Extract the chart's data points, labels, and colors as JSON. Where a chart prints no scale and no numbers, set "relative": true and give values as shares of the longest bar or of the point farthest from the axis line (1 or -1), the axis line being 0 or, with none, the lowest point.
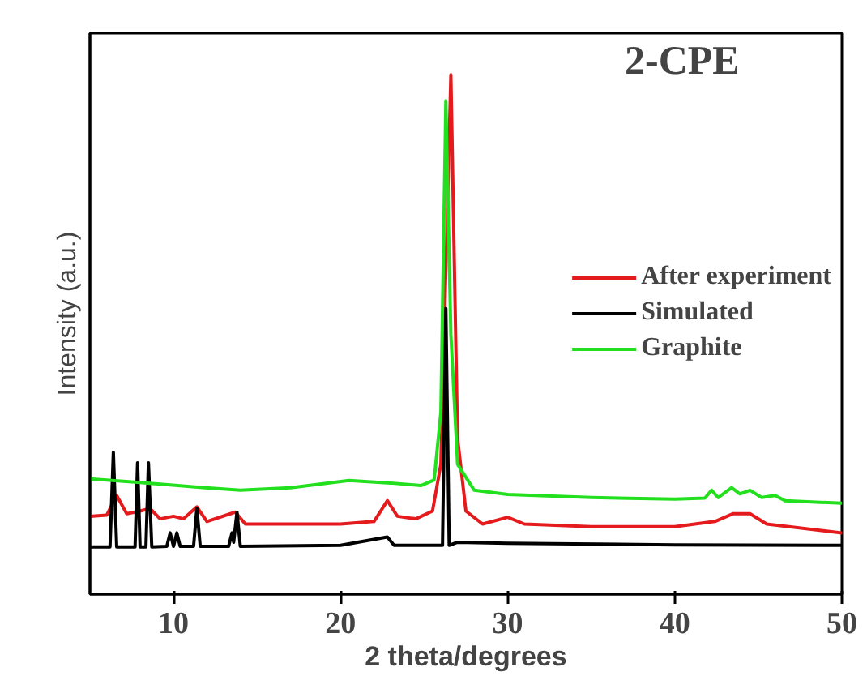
{
  "chart_data": {
    "type": "line",
    "xlabel": "2 theta/degrees",
    "ylabel": "Intensity (a.u.)",
    "relative": true,
    "xlim": [
      5,
      50
    ],
    "xticks": [
      10,
      20,
      30,
      40,
      50
    ],
    "tick_labels": "x",
    "grid": false,
    "legend": "right",
    "annotations": [
      "2-CPE"
    ],
    "series": [
      {
        "name": "After experiment",
        "color": "#e41a1c",
        "x": [
          5,
          6.0,
          6.6,
          7.2,
          8.0,
          8.6,
          9.2,
          10,
          10.6,
          11.4,
          12,
          13.7,
          14.3,
          17,
          20,
          22,
          22.8,
          23.4,
          24.5,
          25.5,
          26.0,
          26.6,
          27.0,
          27.5,
          28.5,
          30,
          31,
          35,
          40,
          42.4,
          43.5,
          44.5,
          45.5,
          50
        ],
        "values": [
          0.15,
          0.152,
          0.19,
          0.155,
          0.16,
          0.165,
          0.145,
          0.15,
          0.145,
          0.168,
          0.14,
          0.158,
          0.135,
          0.135,
          0.135,
          0.14,
          0.18,
          0.15,
          0.145,
          0.16,
          0.25,
          1.0,
          0.3,
          0.16,
          0.135,
          0.148,
          0.135,
          0.13,
          0.13,
          0.14,
          0.155,
          0.155,
          0.135,
          0.118
        ]
      },
      {
        "name": "Simulated",
        "color": "#000000",
        "x": [
          5,
          6.2,
          6.4,
          6.6,
          7.7,
          7.85,
          8.0,
          8.35,
          8.5,
          8.7,
          9.6,
          9.8,
          10.0,
          10.2,
          10.4,
          11.2,
          11.4,
          11.6,
          13.3,
          13.5,
          13.6,
          13.8,
          14.0,
          20,
          22.8,
          23.2,
          26.1,
          26.3,
          26.5,
          27,
          30,
          40,
          50
        ],
        "values": [
          0.091,
          0.091,
          0.273,
          0.091,
          0.091,
          0.253,
          0.091,
          0.091,
          0.253,
          0.091,
          0.092,
          0.118,
          0.092,
          0.118,
          0.092,
          0.092,
          0.165,
          0.092,
          0.092,
          0.118,
          0.1,
          0.158,
          0.092,
          0.094,
          0.11,
          0.094,
          0.094,
          0.55,
          0.094,
          0.1,
          0.098,
          0.095,
          0.094
        ]
      },
      {
        "name": "Graphite",
        "color": "#22e01e",
        "x": [
          5,
          8,
          11,
          14,
          17,
          20.5,
          23,
          24.8,
          25.6,
          26.0,
          26.3,
          26.6,
          27.0,
          28,
          30,
          35,
          40,
          41.8,
          42.2,
          42.6,
          43.4,
          43.9,
          44.5,
          45.2,
          46,
          46.6,
          50
        ],
        "values": [
          0.222,
          0.215,
          0.207,
          0.2,
          0.205,
          0.219,
          0.214,
          0.209,
          0.22,
          0.35,
          0.95,
          0.5,
          0.25,
          0.2,
          0.192,
          0.186,
          0.183,
          0.185,
          0.2,
          0.186,
          0.205,
          0.193,
          0.2,
          0.186,
          0.19,
          0.18,
          0.175
        ]
      }
    ]
  }
}
